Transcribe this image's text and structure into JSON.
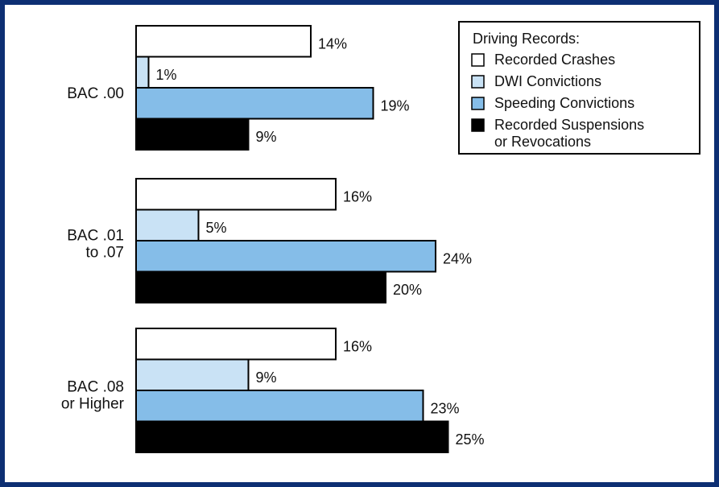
{
  "chart_data": {
    "type": "bar",
    "orientation": "horizontal",
    "grouped": true,
    "categories": [
      [
        "BAC .00"
      ],
      [
        "BAC .01",
        "to .07"
      ],
      [
        "BAC .08",
        "or Higher"
      ]
    ],
    "series": [
      {
        "name": "Recorded Crashes",
        "values": [
          14,
          16,
          16
        ],
        "labels": [
          "14%",
          "16%",
          "16%"
        ],
        "color": "#ffffff"
      },
      {
        "name": "DWI Convictions",
        "values": [
          1,
          5,
          9
        ],
        "labels": [
          "1%",
          "5%",
          "9%"
        ],
        "color": "#c9e2f5"
      },
      {
        "name": "Speeding Convictions",
        "values": [
          19,
          24,
          23
        ],
        "labels": [
          "19%",
          "24%",
          "23%"
        ],
        "color": "#85bde8"
      },
      {
        "name": "Recorded Suspensions or Revocations",
        "values": [
          9,
          20,
          25
        ],
        "labels": [
          "9%",
          "20%",
          "25%"
        ],
        "color": "#000000"
      }
    ],
    "legend": {
      "title": "Driving Records:",
      "position": "top-right",
      "entries": [
        [
          "Recorded Crashes"
        ],
        [
          "DWI Convictions"
        ],
        [
          "Speeding Convictions"
        ],
        [
          "Recorded Suspensions",
          "or Revocations"
        ]
      ]
    },
    "value_axis_visible": false,
    "grid": false,
    "unit": "%"
  },
  "colors": {
    "background": "#0d2f73",
    "panel": "#ffffff",
    "bar_stroke": "#000000"
  }
}
